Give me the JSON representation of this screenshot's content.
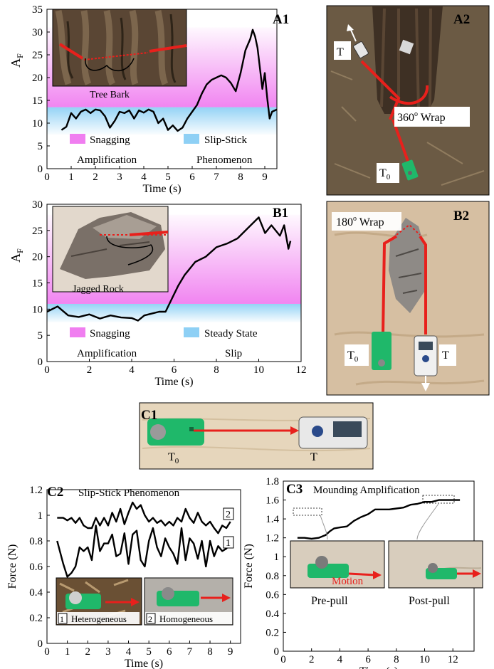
{
  "colors": {
    "snagging": "#f07ef0",
    "slip": "#8ed0f5",
    "trace": "#000000",
    "rope": "#e8201c",
    "tag_green": "#1fb86a",
    "photo_bark": "#5a4634",
    "photo_ground": "#6b5a44",
    "photo_sand": "#d6bfa2",
    "photo_wood": "#e6d6bc"
  },
  "icons": [
    "spring-scale-icon",
    "green-tag-icon",
    "arrow-icon"
  ],
  "panels": {
    "A1": {
      "label": "A1",
      "inset_caption": "Tree Bark",
      "legend": {
        "swatch1": "Snagging",
        "swatch2": "Slip-Stick",
        "line2_left": "Amplification",
        "line2_right": "Phenomenon"
      }
    },
    "A2": {
      "label": "A2",
      "wrap_label": "360",
      "wrap_sup": "o",
      "wrap_suffix": " Wrap",
      "t_label": "T",
      "t0_main": "T",
      "t0_sub": "0"
    },
    "B1": {
      "label": "B1",
      "inset_caption": "Jagged Rock",
      "legend": {
        "swatch1": "Snagging",
        "swatch2": "Steady State",
        "line2_left": "Amplification",
        "line2_right": "Slip"
      }
    },
    "B2": {
      "label": "B2",
      "wrap_label": "180",
      "wrap_sup": "o",
      "wrap_suffix": " Wrap",
      "t_label": "T",
      "t0_main": "T",
      "t0_sub": "0"
    },
    "C1": {
      "label": "C1",
      "t_label": "T",
      "t0_main": "T",
      "t0_sub": "0"
    },
    "C2": {
      "label": "C2",
      "title": "Slip-Stick Phenomenon",
      "series_tag_1": "1",
      "series_tag_2": "2",
      "inset_left_num": "1",
      "inset_left_caption": "Heterogeneous",
      "inset_right_num": "2",
      "inset_right_caption": "Homogeneous"
    },
    "C3": {
      "label": "C3",
      "title": "Mounding Amplification",
      "inset_left_caption": "Pre-pull",
      "inset_right_caption": "Post-pull",
      "motion_label": "Motion"
    }
  },
  "chart_data": [
    {
      "id": "A1",
      "type": "line",
      "xlabel": "Time (s)",
      "ylabel_main": "A",
      "ylabel_sub": "F",
      "xlim": [
        0,
        9.5
      ],
      "ylim": [
        0,
        35
      ],
      "xticks": [
        0,
        1,
        2,
        3,
        4,
        5,
        6,
        7,
        8,
        9
      ],
      "yticks": [
        0,
        5,
        10,
        15,
        20,
        25,
        30,
        35
      ],
      "bands": [
        {
          "name": "Slip-Stick Phenomenon",
          "color": "slip",
          "y0": 7.5,
          "y1": 13.5
        },
        {
          "name": "Snagging Amplification",
          "color": "snagging",
          "y0": 13.5,
          "y1": 31
        }
      ],
      "series": [
        {
          "x": [
            0.6,
            0.8,
            1.0,
            1.2,
            1.4,
            1.6,
            1.8,
            2.0,
            2.2,
            2.4,
            2.6,
            2.8,
            3.0,
            3.2,
            3.4,
            3.6,
            3.8,
            4.0,
            4.2,
            4.4,
            4.6,
            4.8,
            5.0,
            5.2,
            5.4,
            5.6,
            5.8,
            6.0,
            6.2,
            6.4,
            6.6,
            6.8,
            7.0,
            7.2,
            7.4,
            7.6,
            7.8,
            8.0,
            8.2,
            8.4,
            8.5,
            8.6,
            8.7,
            8.8,
            8.9,
            9.0,
            9.1,
            9.2,
            9.3,
            9.5
          ],
          "y": [
            8.5,
            9.2,
            12.2,
            11.0,
            12.5,
            13.0,
            12.2,
            13.0,
            12.8,
            11.5,
            9.0,
            10.5,
            12.5,
            12.2,
            12.8,
            11.0,
            12.8,
            12.3,
            13.0,
            12.5,
            10.0,
            11.0,
            8.5,
            9.5,
            8.3,
            9.0,
            11.0,
            12.5,
            14.0,
            16.5,
            18.5,
            19.5,
            20.0,
            20.5,
            20.0,
            18.8,
            17.0,
            21.0,
            26.0,
            28.5,
            30.5,
            29.0,
            26.5,
            22.0,
            17.5,
            21.0,
            15.5,
            11.0,
            12.5,
            13.0
          ]
        }
      ]
    },
    {
      "id": "B1",
      "type": "line",
      "xlabel": "Time (s)",
      "ylabel_main": "A",
      "ylabel_sub": "F",
      "xlim": [
        0,
        12
      ],
      "ylim": [
        0,
        30
      ],
      "xticks": [
        0,
        2,
        4,
        6,
        8,
        10,
        12
      ],
      "yticks": [
        0,
        5,
        10,
        15,
        20,
        25,
        30
      ],
      "bands": [
        {
          "name": "Steady State Slip",
          "color": "slip",
          "y0": 7.5,
          "y1": 11
        },
        {
          "name": "Snagging Amplification",
          "color": "snagging",
          "y0": 11,
          "y1": 28
        }
      ],
      "series": [
        {
          "x": [
            0,
            0.5,
            1.0,
            1.5,
            2.0,
            2.5,
            3.0,
            3.5,
            4.0,
            4.3,
            4.6,
            5.0,
            5.3,
            5.6,
            5.9,
            6.2,
            6.5,
            7.0,
            7.5,
            8.0,
            8.5,
            9.0,
            9.5,
            10.0,
            10.3,
            10.6,
            11.0,
            11.2,
            11.4,
            11.5
          ],
          "y": [
            9.5,
            10.5,
            8.8,
            8.5,
            9.0,
            8.2,
            8.8,
            8.4,
            8.3,
            7.8,
            8.8,
            9.2,
            9.5,
            9.5,
            12.0,
            14.5,
            16.5,
            19.0,
            20.0,
            21.8,
            22.5,
            23.5,
            25.5,
            27.5,
            24.5,
            26.0,
            24.0,
            26.0,
            21.5,
            23.0
          ]
        }
      ]
    },
    {
      "id": "C2",
      "type": "line",
      "xlabel": "Time (s)",
      "ylabel": "Force (N)",
      "xlim": [
        0,
        9.5
      ],
      "ylim": [
        0,
        1.2
      ],
      "xticks": [
        0,
        1,
        2,
        3,
        4,
        5,
        6,
        7,
        8,
        9
      ],
      "yticks": [
        0,
        0.2,
        0.4,
        0.6,
        0.8,
        1.0,
        1.2
      ],
      "ytick_labels": [
        "0",
        "0.2",
        "0.4",
        "0.6",
        "0.8",
        "1",
        "1.2"
      ],
      "series": [
        {
          "name": "2",
          "x": [
            0.5,
            0.8,
            1.0,
            1.2,
            1.4,
            1.6,
            1.8,
            2.0,
            2.2,
            2.4,
            2.6,
            2.8,
            3.0,
            3.2,
            3.4,
            3.6,
            3.8,
            4.0,
            4.2,
            4.4,
            4.6,
            4.8,
            5.0,
            5.2,
            5.4,
            5.6,
            5.8,
            6.0,
            6.2,
            6.4,
            6.6,
            6.8,
            7.0,
            7.2,
            7.4,
            7.6,
            7.8,
            8.0,
            8.2,
            8.4,
            8.6,
            8.8,
            9.0
          ],
          "y": [
            0.98,
            0.98,
            0.96,
            0.98,
            0.94,
            0.98,
            0.92,
            0.9,
            0.9,
            0.98,
            0.92,
            0.98,
            0.92,
            1.02,
            0.95,
            1.05,
            0.93,
            1.02,
            1.1,
            1.05,
            1.08,
            1.0,
            0.95,
            0.98,
            0.94,
            0.96,
            0.92,
            0.95,
            0.92,
            0.98,
            0.95,
            1.05,
            0.98,
            0.94,
            1.02,
            0.95,
            0.92,
            0.95,
            0.9,
            0.86,
            0.92,
            0.9,
            0.95
          ]
        },
        {
          "name": "1",
          "x": [
            0.5,
            0.8,
            1.0,
            1.2,
            1.4,
            1.6,
            1.8,
            2.0,
            2.2,
            2.4,
            2.6,
            2.8,
            3.0,
            3.2,
            3.4,
            3.6,
            3.8,
            4.0,
            4.2,
            4.4,
            4.6,
            4.8,
            5.0,
            5.2,
            5.4,
            5.6,
            5.8,
            6.0,
            6.2,
            6.4,
            6.6,
            6.8,
            7.0,
            7.2,
            7.4,
            7.6,
            7.8,
            8.0,
            8.2,
            8.4,
            8.6,
            8.8,
            9.0
          ],
          "y": [
            0.8,
            0.62,
            0.52,
            0.55,
            0.6,
            0.75,
            0.72,
            0.75,
            0.65,
            0.92,
            0.72,
            0.78,
            0.78,
            0.85,
            0.68,
            0.7,
            0.86,
            0.62,
            0.85,
            0.88,
            0.65,
            0.6,
            0.8,
            0.9,
            0.75,
            0.68,
            0.82,
            0.75,
            0.7,
            0.62,
            0.9,
            0.65,
            0.82,
            0.78,
            0.66,
            0.8,
            0.6,
            0.8,
            0.68,
            0.76,
            0.72,
            0.74,
            0.78
          ]
        }
      ]
    },
    {
      "id": "C3",
      "type": "line",
      "xlabel": "Time (s)",
      "ylabel": "Force (N)",
      "xlim": [
        0,
        13.5
      ],
      "ylim": [
        0,
        1.8
      ],
      "xticks": [
        0,
        2,
        4,
        6,
        8,
        10,
        12
      ],
      "yticks": [
        0,
        0.2,
        0.4,
        0.6,
        0.8,
        1.0,
        1.2,
        1.4,
        1.6,
        1.8
      ],
      "ytick_labels": [
        "0",
        "0.2",
        "0.4",
        "0.6",
        "0.8",
        "1",
        "1.2",
        "1.4",
        "1.6",
        "1.8"
      ],
      "series": [
        {
          "x": [
            1.0,
            1.5,
            2.0,
            2.5,
            3.0,
            3.3,
            3.6,
            4.0,
            4.5,
            5.0,
            5.5,
            6.0,
            6.5,
            7.0,
            7.5,
            8.0,
            8.5,
            9.0,
            9.5,
            10.0,
            10.5,
            11.0,
            11.5,
            12.0,
            12.5
          ],
          "y": [
            1.2,
            1.2,
            1.19,
            1.2,
            1.23,
            1.27,
            1.3,
            1.31,
            1.32,
            1.38,
            1.42,
            1.45,
            1.5,
            1.5,
            1.5,
            1.51,
            1.52,
            1.55,
            1.56,
            1.58,
            1.58,
            1.6,
            1.6,
            1.6,
            1.6
          ]
        }
      ]
    }
  ]
}
